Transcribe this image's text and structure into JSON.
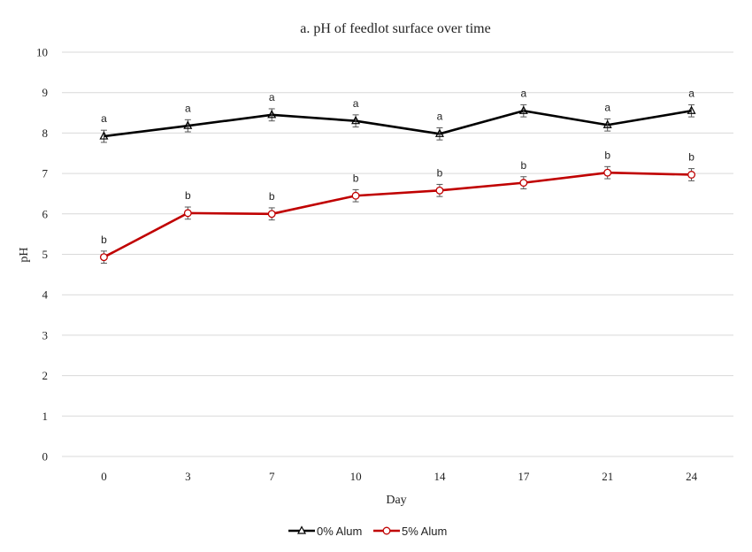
{
  "chart_data": {
    "type": "line",
    "title": "a. pH of feedlot surface over time",
    "xlabel": "Day",
    "ylabel": "pH",
    "categories": [
      "0",
      "3",
      "7",
      "10",
      "14",
      "17",
      "21",
      "24"
    ],
    "ylim": [
      0,
      10
    ],
    "yticks": [
      "0",
      "1",
      "2",
      "3",
      "4",
      "5",
      "6",
      "7",
      "8",
      "9",
      "10"
    ],
    "grid": true,
    "legend_position": "bottom-center",
    "series": [
      {
        "name": "0% Alum",
        "color": "#000000",
        "marker": "triangle",
        "values": [
          7.92,
          8.18,
          8.45,
          8.3,
          7.98,
          8.55,
          8.2,
          8.55
        ],
        "error": [
          0.15,
          0.15,
          0.15,
          0.15,
          0.15,
          0.15,
          0.15,
          0.15
        ],
        "letters": [
          "a",
          "a",
          "a",
          "a",
          "a",
          "a",
          "a",
          "a"
        ]
      },
      {
        "name": "5% Alum",
        "color": "#c00000",
        "marker": "circle",
        "values": [
          4.93,
          6.02,
          6.0,
          6.45,
          6.58,
          6.77,
          7.02,
          6.97
        ],
        "error": [
          0.15,
          0.15,
          0.15,
          0.15,
          0.15,
          0.15,
          0.15,
          0.15
        ],
        "letters": [
          "b",
          "b",
          "b",
          "b",
          "b",
          "b",
          "b",
          "b"
        ]
      }
    ]
  }
}
